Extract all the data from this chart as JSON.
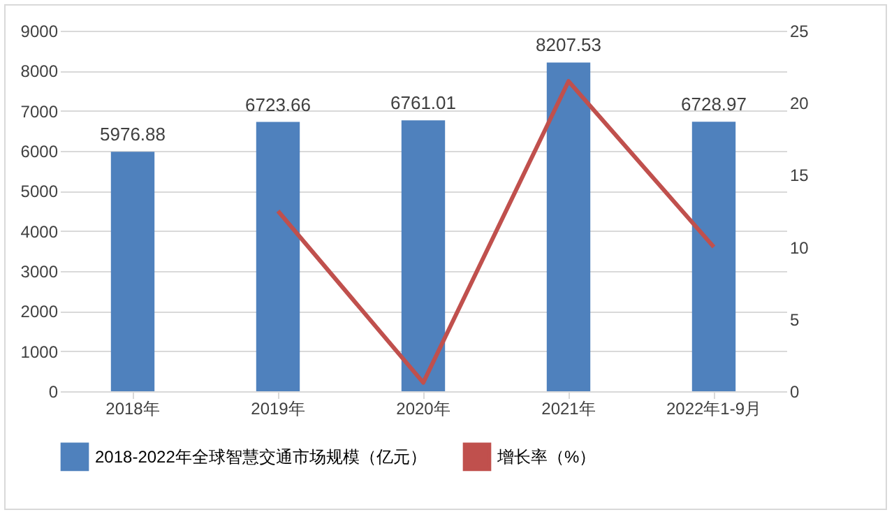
{
  "chart_data": {
    "type": "bar",
    "categories": [
      "2018年",
      "2019年",
      "2020年",
      "2021年",
      "2022年1-9月"
    ],
    "series": [
      {
        "name": "2018-2022年全球智慧交通市场规模（亿元）",
        "color": "#4f81bd",
        "values": [
          5976.88,
          6723.66,
          6761.01,
          8207.53,
          6728.97
        ],
        "value_labels": [
          "5976.88",
          "6723.66",
          "6761.01",
          "8207.53",
          "6728.97"
        ]
      },
      {
        "name": "增长率（%）",
        "type": "line",
        "axis": "y2",
        "color": "#c0504d",
        "values": [
          null,
          12.5,
          0.6,
          21.5,
          10.0
        ]
      }
    ],
    "ylim": [
      0,
      9000
    ],
    "yticks": [
      0,
      1000,
      2000,
      3000,
      4000,
      5000,
      6000,
      7000,
      8000,
      9000
    ],
    "y2lim": [
      0,
      25
    ],
    "y2ticks": [
      0,
      5,
      10,
      15,
      20,
      25
    ],
    "grid": "y",
    "legend": "bottom",
    "marker": "none"
  }
}
